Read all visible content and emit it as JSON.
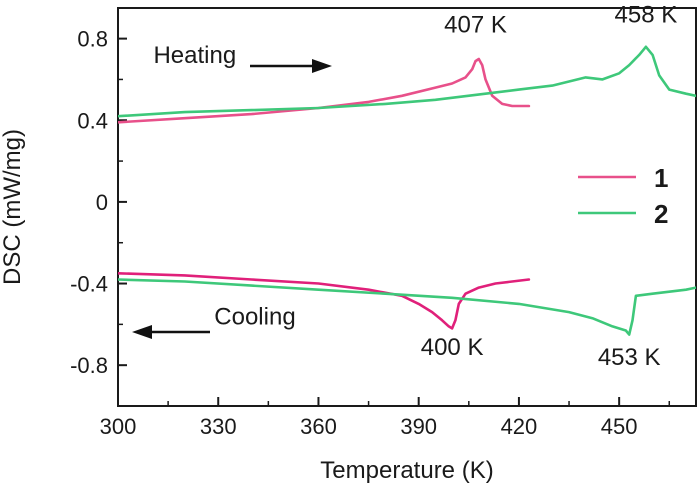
{
  "chart_data": {
    "type": "line",
    "title": "",
    "xlabel": "Temperature (K)",
    "ylabel": "DSC (mW/mg)",
    "xlim": [
      300,
      473
    ],
    "ylim": [
      -1.0,
      0.95
    ],
    "x_ticks": [
      300,
      330,
      360,
      390,
      420,
      450
    ],
    "x_tick_labels": [
      "300",
      "330",
      "360",
      "390",
      "420",
      "450"
    ],
    "y_ticks": [
      0.8,
      0.4,
      0,
      -0.4,
      -0.8
    ],
    "y_tick_labels": [
      "0.8",
      "0.4",
      "0",
      "-0.4",
      "-0.8"
    ],
    "legend": {
      "position": "right",
      "entries": [
        {
          "label": "1",
          "color": "#e8508a"
        },
        {
          "label": "2",
          "color": "#3ec87a"
        }
      ]
    },
    "series": [
      {
        "name": "1 heating",
        "color": "#e8508a",
        "x": [
          300,
          320,
          340,
          360,
          375,
          385,
          395,
          400,
          404,
          406,
          407,
          408,
          409,
          410,
          412,
          415,
          418,
          423
        ],
        "y": [
          0.39,
          0.41,
          0.43,
          0.46,
          0.49,
          0.52,
          0.56,
          0.58,
          0.61,
          0.65,
          0.69,
          0.7,
          0.67,
          0.6,
          0.52,
          0.48,
          0.47,
          0.47
        ]
      },
      {
        "name": "2 heating",
        "color": "#3ec87a",
        "x": [
          300,
          320,
          340,
          360,
          380,
          395,
          410,
          420,
          430,
          435,
          440,
          445,
          450,
          453,
          456,
          458,
          460,
          462,
          465,
          470,
          473
        ],
        "y": [
          0.42,
          0.44,
          0.45,
          0.46,
          0.48,
          0.5,
          0.53,
          0.55,
          0.57,
          0.59,
          0.61,
          0.6,
          0.63,
          0.67,
          0.72,
          0.76,
          0.72,
          0.62,
          0.55,
          0.53,
          0.52
        ]
      },
      {
        "name": "1 cooling",
        "color": "#e0207a",
        "x": [
          300,
          320,
          340,
          360,
          375,
          385,
          390,
          394,
          397,
          399,
          400,
          401,
          402,
          404,
          408,
          413,
          418,
          423
        ],
        "y": [
          -0.35,
          -0.36,
          -0.38,
          -0.4,
          -0.43,
          -0.46,
          -0.5,
          -0.54,
          -0.58,
          -0.61,
          -0.62,
          -0.58,
          -0.5,
          -0.45,
          -0.42,
          -0.4,
          -0.39,
          -0.38
        ]
      },
      {
        "name": "2 cooling",
        "color": "#3ec87a",
        "x": [
          300,
          320,
          340,
          360,
          380,
          400,
          420,
          435,
          442,
          448,
          452,
          453,
          454,
          455,
          460,
          465,
          470,
          473
        ],
        "y": [
          -0.38,
          -0.39,
          -0.41,
          -0.43,
          -0.45,
          -0.47,
          -0.5,
          -0.54,
          -0.57,
          -0.61,
          -0.63,
          -0.65,
          -0.58,
          -0.46,
          -0.45,
          -0.44,
          -0.43,
          -0.42
        ]
      }
    ],
    "annotations": [
      {
        "text": "407 K",
        "x": 407,
        "y": 0.83
      },
      {
        "text": "458 K",
        "x": 458,
        "y": 0.88
      },
      {
        "text": "400 K",
        "x": 400,
        "y": -0.75
      },
      {
        "text": "453 K",
        "x": 453,
        "y": -0.8
      },
      {
        "text": "Heating",
        "x": 323,
        "y": 0.68
      },
      {
        "text": "Cooling",
        "x": 341,
        "y": -0.6
      }
    ]
  }
}
